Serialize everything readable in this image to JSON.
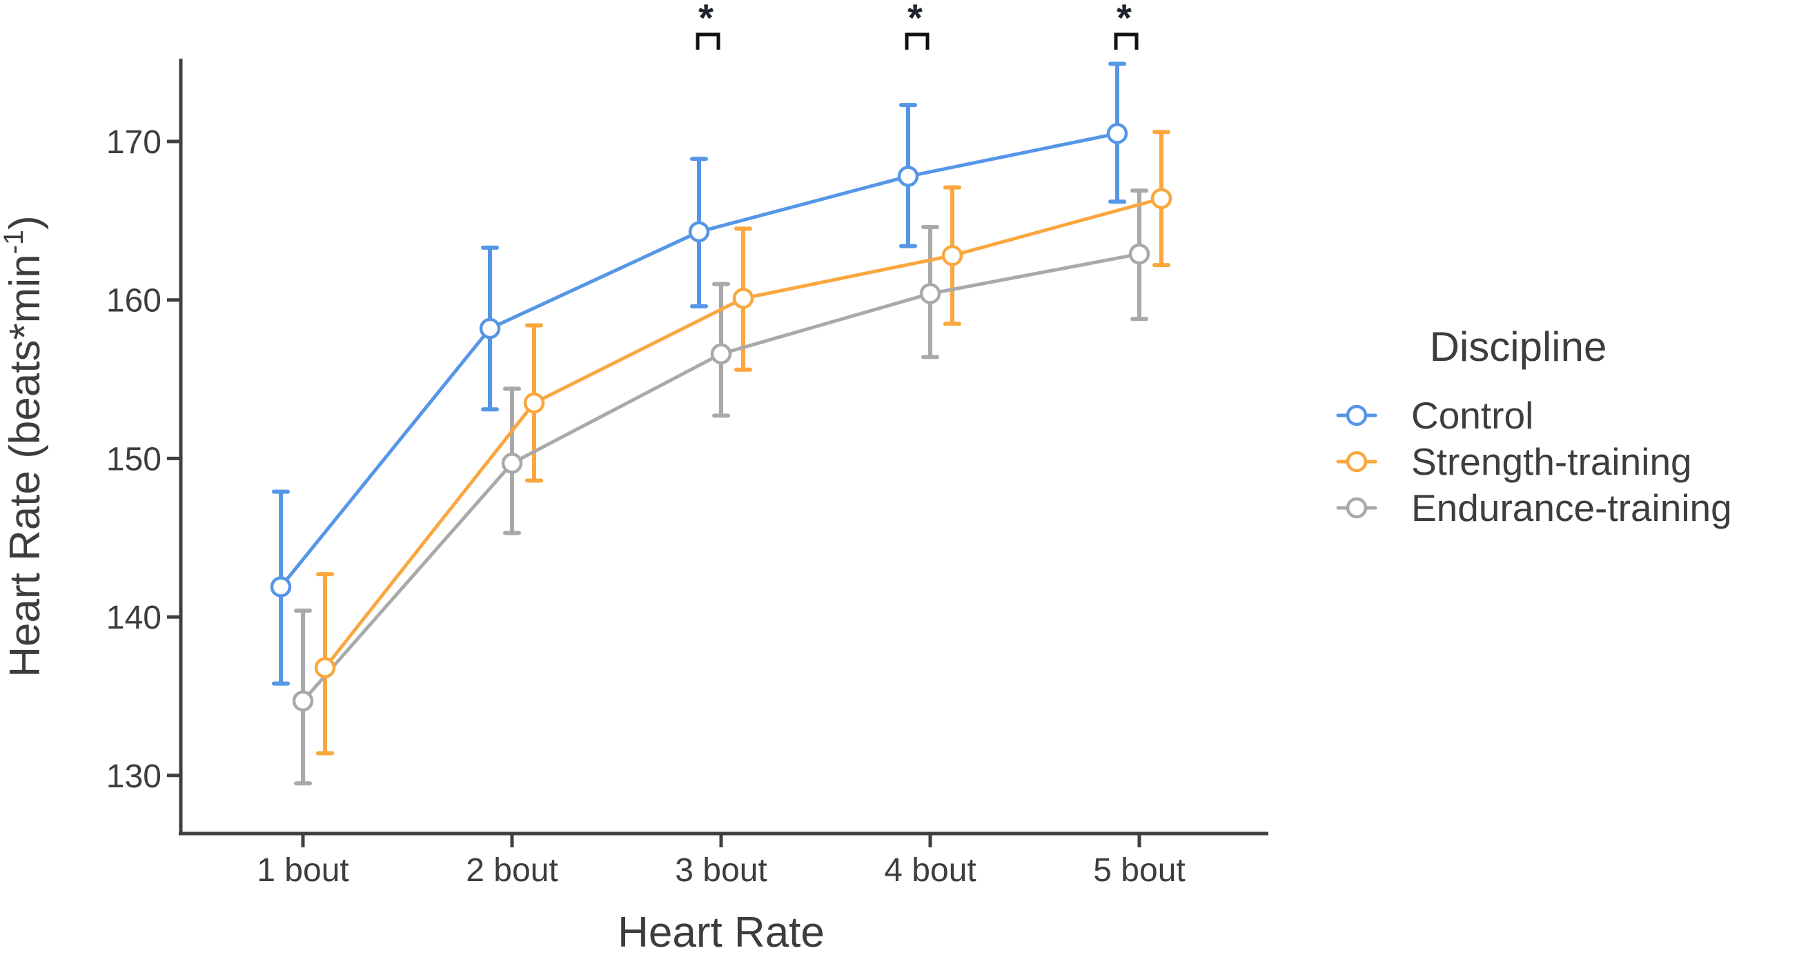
{
  "page": {
    "background": "#ffffff"
  },
  "chart_data": {
    "type": "line",
    "title": "",
    "xlabel": "Heart Rate",
    "ylabel": "Heart Rate (beats*min⁻¹)",
    "ylabel_parts": {
      "main": "Heart Rate (beats*min",
      "superscript": "-1",
      "suffix": ")"
    },
    "categories": [
      "1 bout",
      "2 bout",
      "3 bout",
      "4 bout",
      "5 bout"
    ],
    "ylim": [
      126,
      176
    ],
    "yticks": [
      130,
      140,
      150,
      160,
      170
    ],
    "grid": false,
    "legend": {
      "title": "Discipline",
      "position": "right"
    },
    "series": [
      {
        "name": "Control",
        "color": "#5596E6",
        "values": [
          141.9,
          158.2,
          164.3,
          167.8,
          170.5
        ],
        "ci_low": [
          135.8,
          153.1,
          159.6,
          163.4,
          166.2
        ],
        "ci_high": [
          147.9,
          163.3,
          168.9,
          172.3,
          174.9
        ]
      },
      {
        "name": "Strength-training",
        "color": "#F9A73E",
        "values": [
          136.8,
          153.5,
          160.1,
          162.8,
          166.4
        ],
        "ci_low": [
          131.4,
          148.6,
          155.6,
          158.5,
          162.2
        ],
        "ci_high": [
          142.7,
          158.4,
          164.5,
          167.1,
          170.6
        ]
      },
      {
        "name": "Endurance-training",
        "color": "#A9A9A9",
        "values": [
          134.7,
          149.7,
          156.6,
          160.4,
          162.9
        ],
        "ci_low": [
          129.5,
          145.3,
          152.7,
          156.4,
          158.8
        ],
        "ci_high": [
          140.4,
          154.4,
          161.0,
          164.6,
          166.9
        ]
      }
    ],
    "significance": {
      "symbol": "*",
      "marker_color": "#20242c",
      "bracket_color": "#111111",
      "categories": [
        "3 bout",
        "4 bout",
        "5 bout"
      ]
    },
    "axis_color": "#3f3f3f",
    "text_color": "#3d3d3d"
  }
}
